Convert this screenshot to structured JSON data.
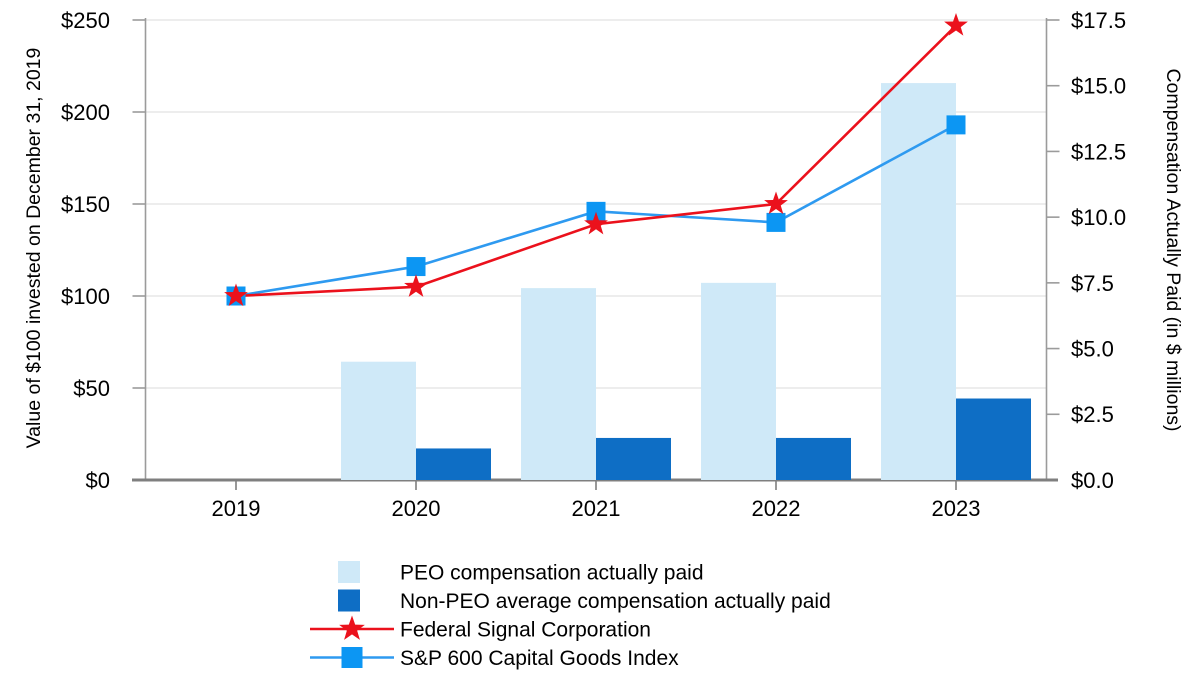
{
  "figure": {
    "colors": {
      "peo_bar": "#cfe9f8",
      "non_peo_bar": "#0e6ec5",
      "federal_signal_line": "#eb111c",
      "sp600_line": "#2e9af0",
      "sp600_marker": "#0c96f3",
      "gridline": "#e2e2e2",
      "axis_line": "#9b9b9b",
      "x_axis_line": "#7f7f7f",
      "text": "#000000"
    }
  },
  "chart_data": {
    "type": "bar",
    "subtype": "combo-bar-line-dual-axis",
    "categories": [
      "2019",
      "2020",
      "2021",
      "2022",
      "2023"
    ],
    "left_axis": {
      "label": "Value of $100 invested on December 31, 2019",
      "tick_labels": [
        "$0",
        "$50",
        "$100",
        "$150",
        "$200",
        "$250"
      ],
      "tick_values": [
        0,
        50,
        100,
        150,
        200,
        250
      ],
      "range": [
        0,
        250
      ],
      "grid": true
    },
    "right_axis": {
      "label": "Compensation Actually Paid (in $ millions)",
      "tick_labels": [
        "$0.0",
        "$2.5",
        "$5.0",
        "$7.5",
        "$10.0",
        "$12.5",
        "$15.0",
        "$17.5"
      ],
      "tick_values": [
        0,
        2.5,
        5,
        7.5,
        10,
        12.5,
        15,
        17.5
      ],
      "range": [
        0,
        17.5
      ],
      "grid": false
    },
    "series": [
      {
        "name": "PEO compensation actually paid",
        "type": "bar",
        "axis": "right",
        "values": [
          null,
          4.5,
          7.3,
          7.5,
          15.1
        ]
      },
      {
        "name": "Non-PEO average compensation actually paid",
        "type": "bar",
        "axis": "right",
        "values": [
          null,
          1.2,
          1.6,
          1.6,
          3.1
        ]
      },
      {
        "name": "Federal Signal Corporation",
        "type": "line",
        "marker": "star",
        "axis": "left",
        "values": [
          100,
          105,
          139,
          150,
          247
        ]
      },
      {
        "name": "S&P 600 Capital Goods Index",
        "type": "line",
        "marker": "square",
        "axis": "left",
        "values": [
          100,
          116,
          146,
          140,
          193
        ]
      }
    ],
    "legend_position": "bottom"
  }
}
